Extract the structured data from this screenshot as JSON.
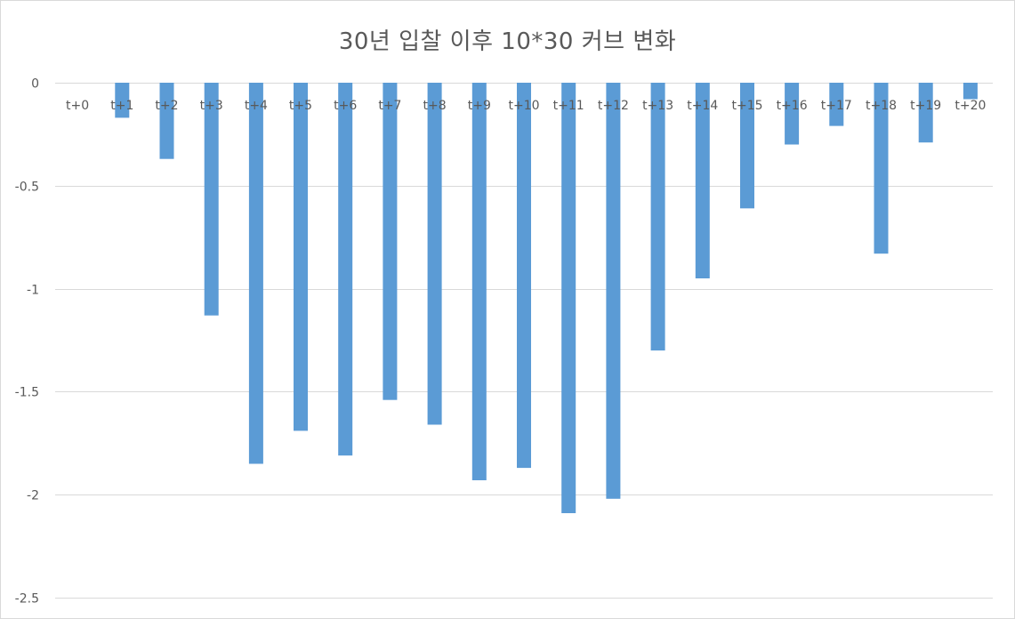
{
  "chart_data": {
    "type": "bar",
    "title": "30년 입찰 이후 10*30 커브 변화",
    "xlabel": "",
    "ylabel": "",
    "categories": [
      "t+0",
      "t+1",
      "t+2",
      "t+3",
      "t+4",
      "t+5",
      "t+6",
      "t+7",
      "t+8",
      "t+9",
      "t+10",
      "t+11",
      "t+12",
      "t+13",
      "t+14",
      "t+15",
      "t+16",
      "t+17",
      "t+18",
      "t+19",
      "t+20"
    ],
    "values": [
      0,
      -0.17,
      -0.37,
      -1.13,
      -1.85,
      -1.69,
      -1.81,
      -1.54,
      -1.66,
      -1.93,
      -1.87,
      -2.09,
      -2.02,
      -1.3,
      -0.95,
      -0.61,
      -0.3,
      -0.21,
      -0.83,
      -0.29,
      -0.08
    ],
    "ylim": [
      -2.5,
      0
    ],
    "yticks": [
      0,
      -0.5,
      -1,
      -1.5,
      -2,
      -2.5
    ],
    "ytick_labels": [
      "0",
      "-0.5",
      "-1",
      "-1.5",
      "-2",
      "-2.5"
    ],
    "grid": true,
    "legend": "none",
    "colors": {
      "bar": "#5b9bd5",
      "grid": "#d9d9d9",
      "text": "#595959"
    }
  }
}
